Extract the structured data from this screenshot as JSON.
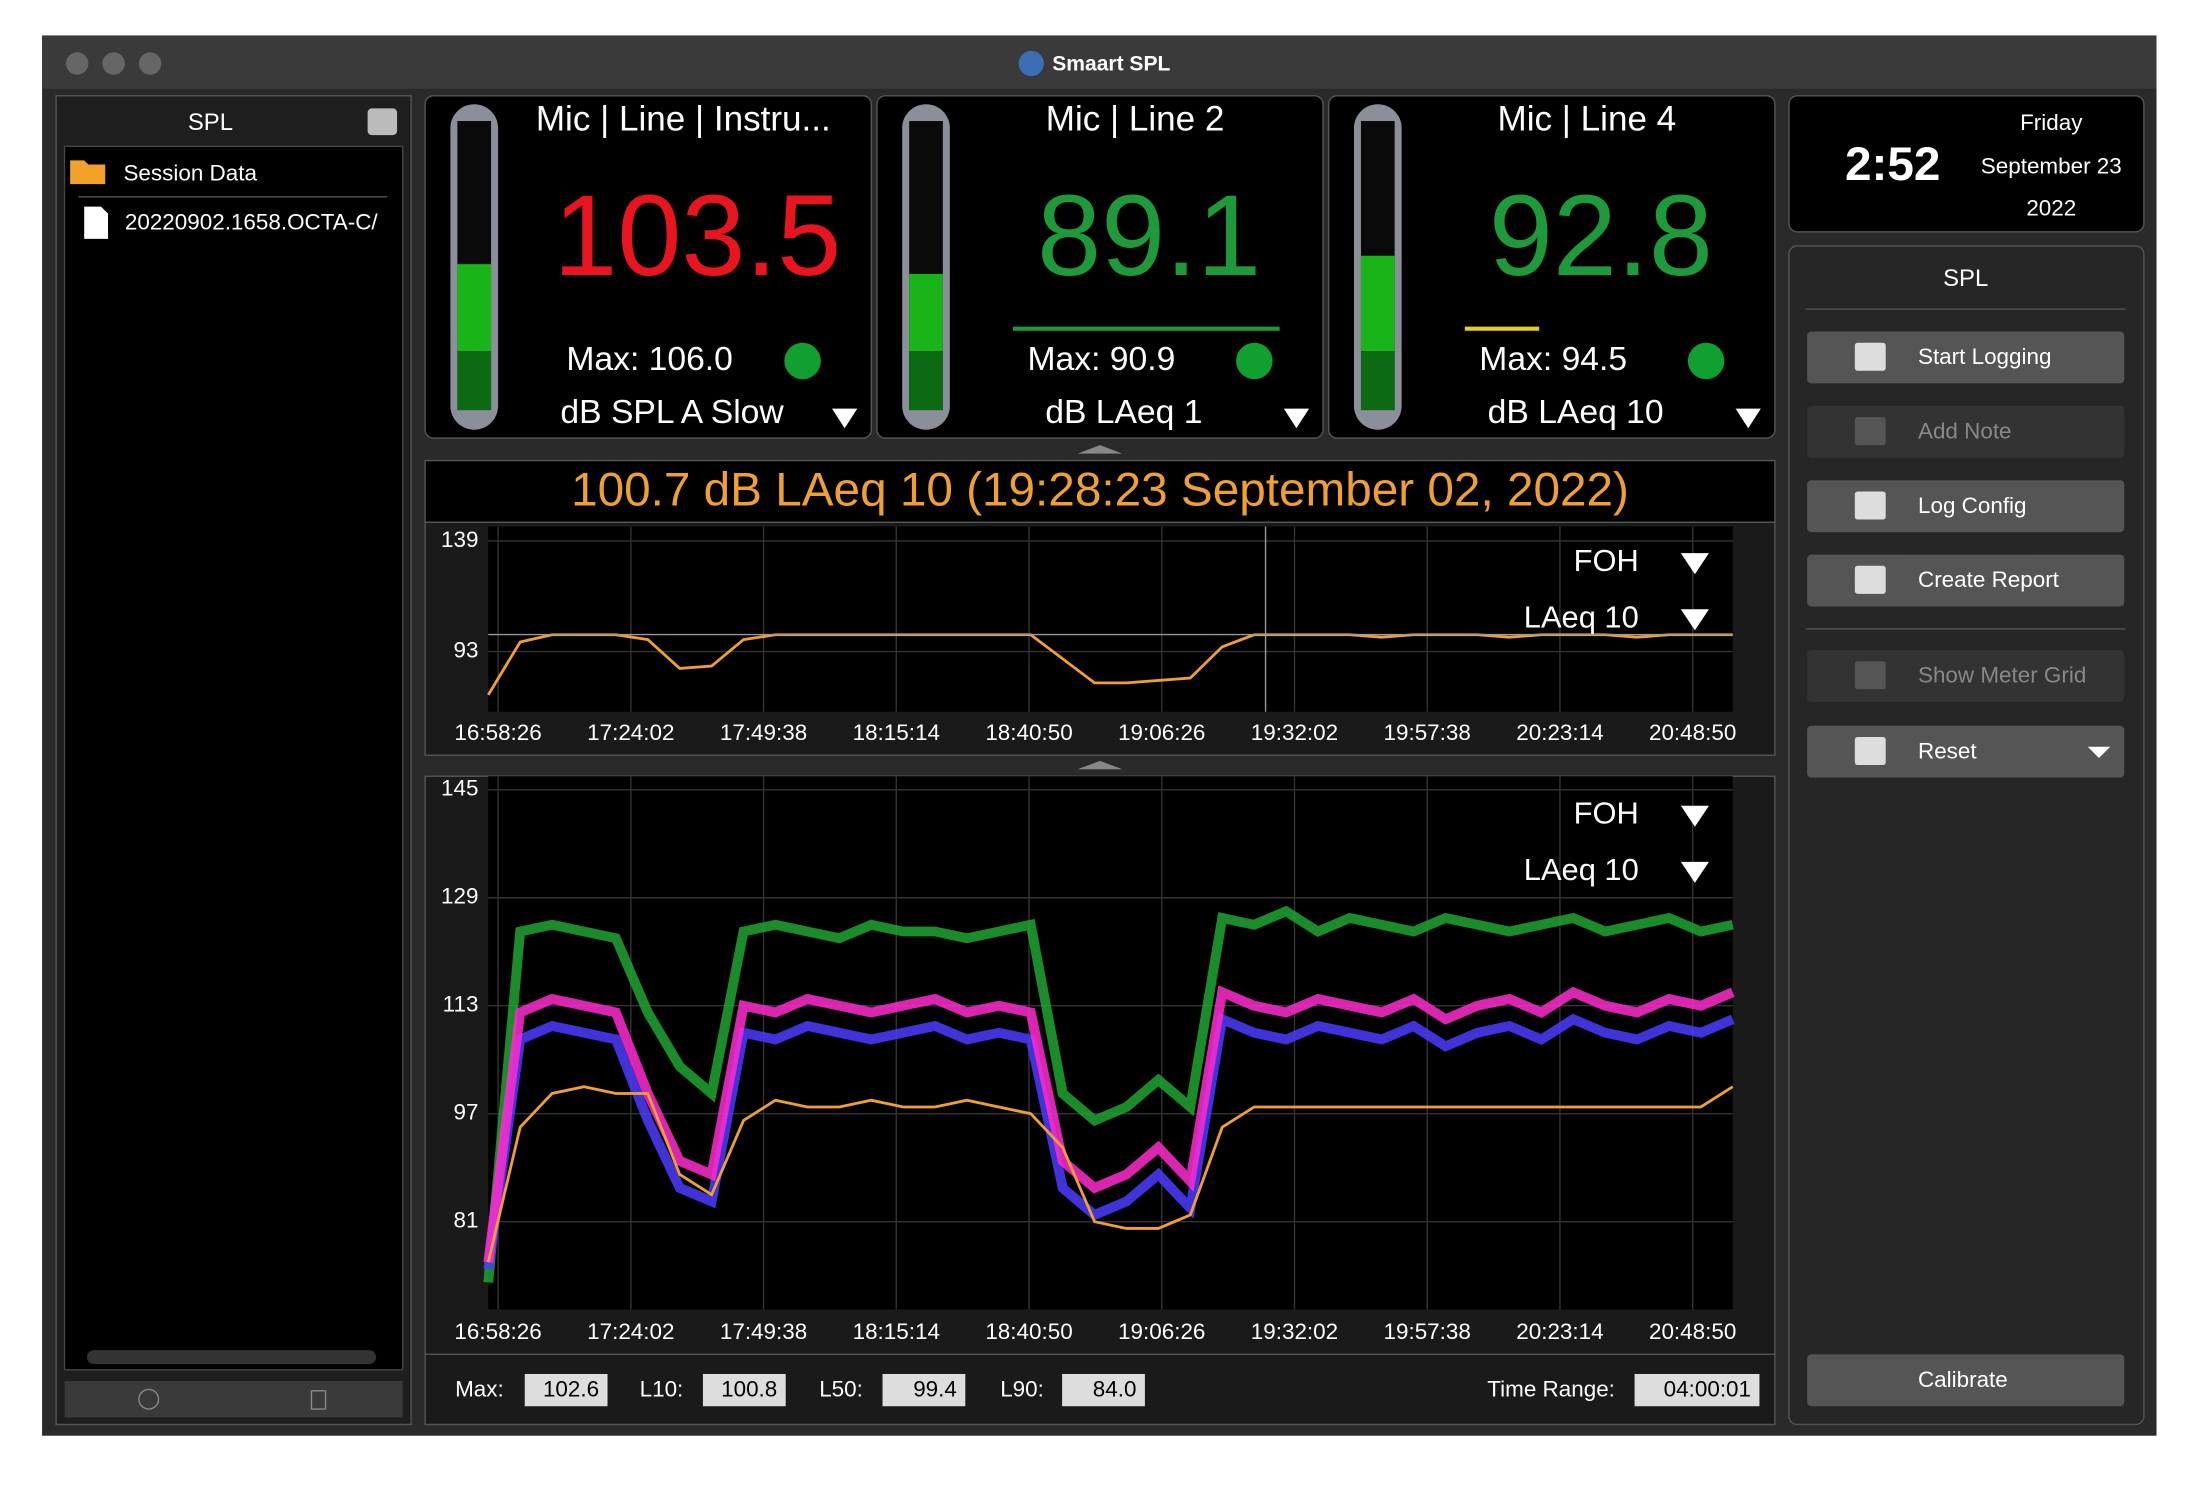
{
  "window": {
    "title": "Smaart SPL"
  },
  "sidebar": {
    "title": "SPL",
    "items": [
      "Session Data",
      "20220902.1658.OCTA-C/"
    ]
  },
  "meters": [
    {
      "label": "Mic | Line | Instru...",
      "value": "103.5",
      "max": "Max: 106.0",
      "mode": "dB SPL A Slow",
      "color": "#e8141e"
    },
    {
      "label": "Mic | Line 2",
      "value": "89.1",
      "max": "Max: 90.9",
      "mode": "dB LAeq 1",
      "color": "#1f9a3a"
    },
    {
      "label": "Mic | Line 4",
      "value": "92.8",
      "max": "Max: 94.5",
      "mode": "dB LAeq 10",
      "color": "#1f9a3a"
    }
  ],
  "clock": {
    "time": "2:52",
    "day": "Friday",
    "date": "September 23",
    "year": "2022"
  },
  "panel": {
    "title": "SPL",
    "buttons": [
      "Start Logging",
      "Add Note",
      "Log Config",
      "Create Report",
      "Show Meter Grid",
      "Reset"
    ],
    "calibrate": "Calibrate"
  },
  "headline": "100.7 dB LAeq 10 (19:28:23 September 02, 2022)",
  "charts": [
    {
      "type": "line",
      "ylim": [
        68,
        145
      ],
      "yticks": [
        93,
        139
      ],
      "source": "FOH",
      "metric": "LAeq 10",
      "xticks": [
        "16:58:26",
        "17:24:02",
        "17:49:38",
        "18:15:14",
        "18:40:50",
        "19:06:26",
        "19:32:02",
        "19:57:38",
        "20:23:14",
        "20:48:50"
      ],
      "series": [
        {
          "color": "#f0a030",
          "values": [
            75,
            97,
            100,
            100,
            100,
            98,
            86,
            87,
            98,
            100,
            100,
            100,
            100,
            100,
            100,
            100,
            100,
            100,
            90,
            80,
            80,
            81,
            82,
            95,
            100,
            100,
            100,
            100,
            99,
            100,
            100,
            100,
            99,
            100,
            100,
            100,
            99,
            100,
            100,
            100
          ]
        }
      ]
    },
    {
      "type": "line",
      "ylim": [
        68,
        147
      ],
      "yticks": [
        81,
        97,
        113,
        129,
        145
      ],
      "source": "FOH",
      "metric": "LAeq 10",
      "xticks": [
        "16:58:26",
        "17:24:02",
        "17:49:38",
        "18:15:14",
        "18:40:50",
        "19:06:26",
        "19:32:02",
        "19:57:38",
        "20:23:14",
        "20:48:50"
      ],
      "series": [
        {
          "color": "#1fa531",
          "values": [
            72,
            124,
            125,
            124,
            123,
            112,
            104,
            100,
            124,
            125,
            124,
            123,
            125,
            124,
            124,
            123,
            124,
            125,
            100,
            96,
            98,
            102,
            98,
            126,
            125,
            127,
            124,
            126,
            125,
            124,
            126,
            125,
            124,
            125,
            126,
            124,
            125,
            126,
            124,
            125
          ]
        },
        {
          "color": "#4a3cff",
          "values": [
            74,
            108,
            110,
            109,
            108,
            96,
            86,
            84,
            109,
            108,
            110,
            109,
            108,
            109,
            110,
            108,
            109,
            108,
            86,
            82,
            84,
            88,
            83,
            111,
            109,
            108,
            110,
            109,
            108,
            110,
            107,
            109,
            110,
            108,
            111,
            109,
            108,
            110,
            109,
            111
          ]
        },
        {
          "color": "#ff2ccf",
          "values": [
            75,
            112,
            114,
            113,
            112,
            100,
            90,
            88,
            113,
            112,
            114,
            113,
            112,
            113,
            114,
            112,
            113,
            112,
            90,
            86,
            88,
            92,
            87,
            115,
            113,
            112,
            114,
            113,
            112,
            114,
            111,
            113,
            114,
            112,
            115,
            113,
            112,
            114,
            113,
            115
          ]
        },
        {
          "color": "#f0a030",
          "values": [
            75,
            95,
            100,
            101,
            100,
            100,
            88,
            85,
            96,
            99,
            98,
            98,
            99,
            98,
            98,
            99,
            98,
            97,
            92,
            81,
            80,
            80,
            82,
            95,
            98,
            98,
            98,
            98,
            98,
            98,
            98,
            98,
            98,
            98,
            98,
            98,
            98,
            98,
            98,
            101
          ]
        }
      ]
    }
  ],
  "stats": {
    "labels": [
      "Max:",
      "L10:",
      "L50:",
      "L90:",
      "Time Range:"
    ],
    "values": [
      "102.6",
      "100.8",
      "99.4",
      "84.0",
      "04:00:01"
    ]
  }
}
